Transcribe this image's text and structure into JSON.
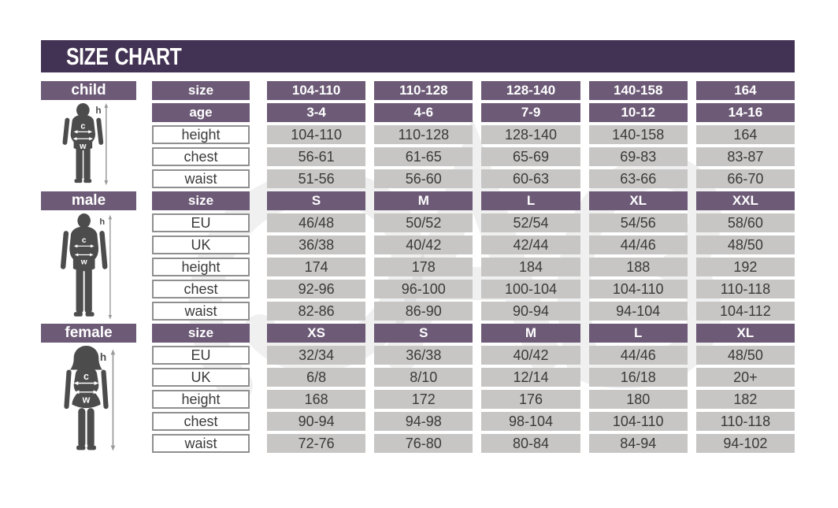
{
  "title": "SIZE CHART",
  "colors": {
    "header_bg": "#423253",
    "section_bar_bg": "#6c5a76",
    "value_cell_bg": "#c7c6c5",
    "cell_text": "#3a3a3a",
    "header_text": "#ffffff",
    "silhouette": "#4c4c4c"
  },
  "figure_annotations": {
    "height_letter": "h",
    "chest_letter": "c",
    "waist_letter": "w"
  },
  "chart_data": {
    "type": "table",
    "title": "SIZE CHART",
    "tables": [
      {
        "section": "child",
        "rows": [
          {
            "label": "size",
            "type": "header",
            "values": [
              "104-110",
              "110-128",
              "128-140",
              "140-158",
              "164"
            ]
          },
          {
            "label": "age",
            "type": "header",
            "values": [
              "3-4",
              "4-6",
              "7-9",
              "10-12",
              "14-16"
            ]
          },
          {
            "label": "height",
            "type": "data",
            "values": [
              "104-110",
              "110-128",
              "128-140",
              "140-158",
              "164"
            ]
          },
          {
            "label": "chest",
            "type": "data",
            "values": [
              "56-61",
              "61-65",
              "65-69",
              "69-83",
              "83-87"
            ]
          },
          {
            "label": "waist",
            "type": "data",
            "values": [
              "51-56",
              "56-60",
              "60-63",
              "63-66",
              "66-70"
            ]
          }
        ]
      },
      {
        "section": "male",
        "rows": [
          {
            "label": "size",
            "type": "header",
            "values": [
              "S",
              "M",
              "L",
              "XL",
              "XXL"
            ]
          },
          {
            "label": "EU",
            "type": "data",
            "values": [
              "46/48",
              "50/52",
              "52/54",
              "54/56",
              "58/60"
            ]
          },
          {
            "label": "UK",
            "type": "data",
            "values": [
              "36/38",
              "40/42",
              "42/44",
              "44/46",
              "48/50"
            ]
          },
          {
            "label": "height",
            "type": "data",
            "values": [
              "174",
              "178",
              "184",
              "188",
              "192"
            ]
          },
          {
            "label": "chest",
            "type": "data",
            "values": [
              "92-96",
              "96-100",
              "100-104",
              "104-110",
              "110-118"
            ]
          },
          {
            "label": "waist",
            "type": "data",
            "values": [
              "82-86",
              "86-90",
              "90-94",
              "94-104",
              "104-112"
            ]
          }
        ]
      },
      {
        "section": "female",
        "rows": [
          {
            "label": "size",
            "type": "header",
            "values": [
              "XS",
              "S",
              "M",
              "L",
              "XL"
            ]
          },
          {
            "label": "EU",
            "type": "data",
            "values": [
              "32/34",
              "36/38",
              "40/42",
              "44/46",
              "48/50"
            ]
          },
          {
            "label": "UK",
            "type": "data",
            "values": [
              "6/8",
              "8/10",
              "12/14",
              "16/18",
              "20+"
            ]
          },
          {
            "label": "height",
            "type": "data",
            "values": [
              "168",
              "172",
              "176",
              "180",
              "182"
            ]
          },
          {
            "label": "chest",
            "type": "data",
            "values": [
              "90-94",
              "94-98",
              "98-104",
              "104-110",
              "110-118"
            ]
          },
          {
            "label": "waist",
            "type": "data",
            "values": [
              "72-76",
              "76-80",
              "80-84",
              "84-94",
              "94-102"
            ]
          }
        ]
      }
    ]
  }
}
